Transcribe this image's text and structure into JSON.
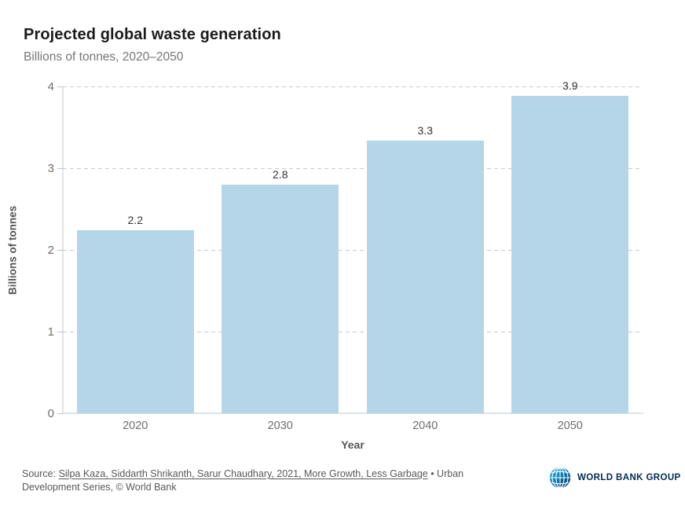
{
  "header": {
    "title": "Projected global waste generation",
    "subtitle": "Billions of tonnes, 2020–2050"
  },
  "chart_data": {
    "type": "bar",
    "title": "Projected global waste generation",
    "subtitle": "Billions of tonnes, 2020–2050",
    "categories": [
      "2020",
      "2030",
      "2040",
      "2050"
    ],
    "values": [
      2.24,
      2.8,
      3.34,
      3.88
    ],
    "value_labels": [
      "2.2",
      "2.8",
      "3.3",
      "3.9"
    ],
    "xlabel": "Year",
    "ylabel": "Billions of tonnes",
    "ylim": [
      0,
      4
    ],
    "yticks": [
      0,
      1,
      2,
      3,
      4
    ],
    "grid": "horizontal-dashed",
    "legend": "none",
    "bar_color": "#b5d6e8"
  },
  "footer": {
    "source_prefix": "Source: ",
    "source_link": "Silpa Kaza, Siddarth Shrikanth, Sarur Chaudhary, 2021, More Growth, Less Garbage",
    "source_suffix": " • Urban Development Series, © World Bank",
    "logo_text": "WORLD BANK GROUP"
  },
  "colors": {
    "bar": "#b5d6e8",
    "title": "#1b1b1b",
    "subtitle": "#767676",
    "axis_text": "#6e6e6e",
    "axis_line": "#dfe5e9",
    "gridline": "#c9c9c9",
    "logo_navy": "#002b52",
    "logo_cyan": "#00ade4"
  }
}
